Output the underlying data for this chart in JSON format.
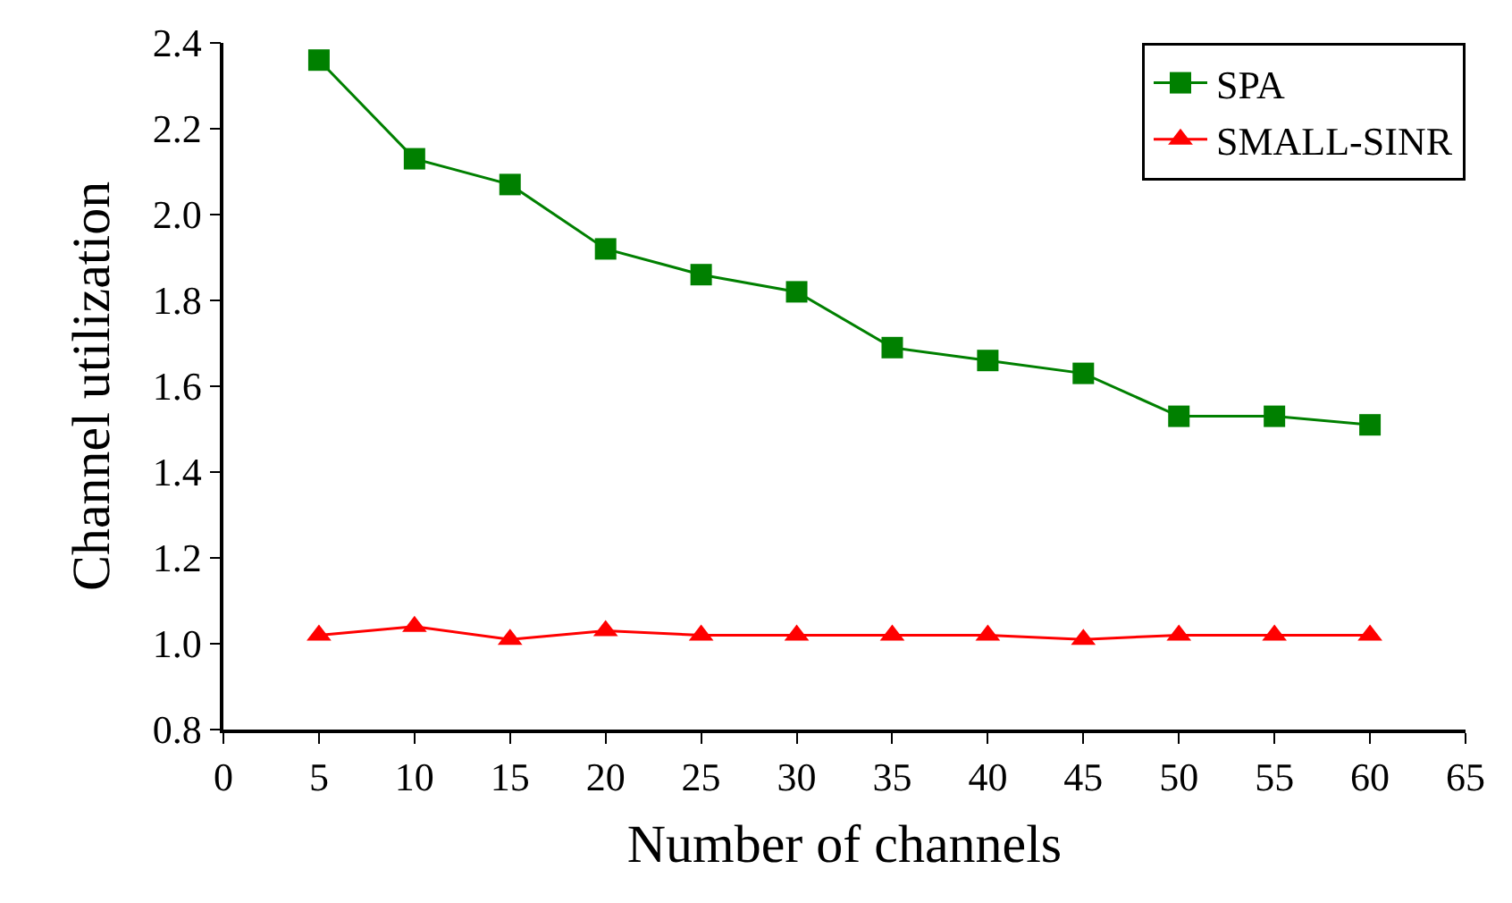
{
  "chart_data": {
    "type": "line",
    "xlabel": "Number of channels",
    "ylabel": "Channel utilization",
    "x": [
      5,
      10,
      15,
      20,
      25,
      30,
      35,
      40,
      45,
      50,
      55,
      60
    ],
    "series": [
      {
        "name": "SPA",
        "color": "#008000",
        "marker": "square",
        "values": [
          2.36,
          2.13,
          2.07,
          1.92,
          1.86,
          1.82,
          1.69,
          1.66,
          1.63,
          1.53,
          1.53,
          1.51
        ]
      },
      {
        "name": "SMALL-SINR",
        "color": "#ff0000",
        "marker": "triangle",
        "values": [
          1.02,
          1.04,
          1.01,
          1.03,
          1.02,
          1.02,
          1.02,
          1.02,
          1.01,
          1.02,
          1.02,
          1.02
        ]
      }
    ],
    "xlim": [
      0,
      65
    ],
    "xticks": [
      0,
      5,
      10,
      15,
      20,
      25,
      30,
      35,
      40,
      45,
      50,
      55,
      60,
      65
    ],
    "ylim": [
      0.8,
      2.4
    ],
    "yticks": [
      {
        "value": 0.8,
        "label": "0.8"
      },
      {
        "value": 1.0,
        "label": "1.0"
      },
      {
        "value": 1.2,
        "label": "1.2"
      },
      {
        "value": 1.4,
        "label": "1.4"
      },
      {
        "value": 1.6,
        "label": "1.6"
      },
      {
        "value": 1.8,
        "label": "1.8"
      },
      {
        "value": 2.0,
        "label": "2.0"
      },
      {
        "value": 2.2,
        "label": "2.2"
      },
      {
        "value": 2.4,
        "label": "2.4"
      }
    ],
    "legend": "top right"
  }
}
